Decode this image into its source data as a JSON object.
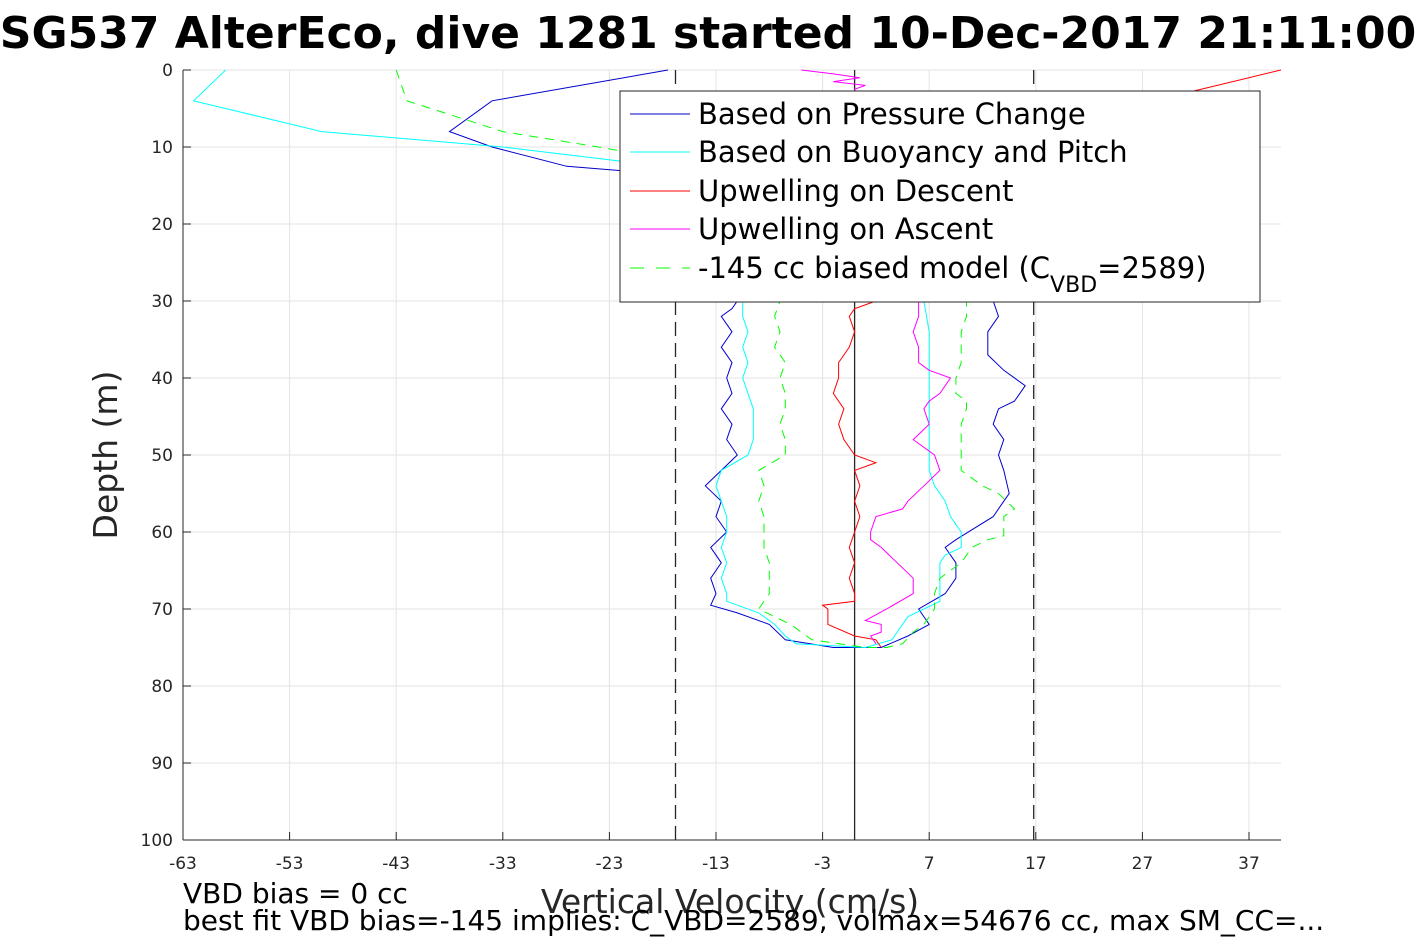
{
  "title": "SG537 AlterEco, dive 1281 started 10-Dec-2017 21:11:00",
  "notes": {
    "bias": "VBD bias = 0 cc",
    "fit": "best fit VBD bias=-145 implies: C_VBD=2589, volmax=54676 cc, max SM_CC=..."
  },
  "chart_data": {
    "type": "line",
    "xlabel": "Vertical Velocity (cm/s)",
    "ylabel": "Depth (m)",
    "xlim": [
      -63,
      40
    ],
    "ylim": [
      0,
      100
    ],
    "y_reversed": true,
    "grid": true,
    "xticks": [
      -63,
      -53,
      -43,
      -33,
      -23,
      -13,
      -3,
      7,
      17,
      27,
      37
    ],
    "yticks": [
      0,
      10,
      20,
      30,
      40,
      50,
      60,
      70,
      80,
      90,
      100
    ],
    "legend_position": "top-right",
    "reference_lines": [
      {
        "x": -16.8,
        "style": "dashed",
        "color": "#000000"
      },
      {
        "x": 0.0,
        "style": "solid",
        "color": "#000000"
      },
      {
        "x": 16.8,
        "style": "dashed",
        "color": "#000000"
      }
    ],
    "series": [
      {
        "name": "Based on Pressure Change",
        "color": "#0000cc",
        "dash": "",
        "points": [
          [
            -17.5,
            0
          ],
          [
            -34,
            4
          ],
          [
            -38,
            8
          ],
          [
            -34,
            10
          ],
          [
            -27,
            12.5
          ],
          [
            -18,
            13.5
          ],
          [
            -11,
            30
          ],
          [
            -11.5,
            31
          ],
          [
            -12.5,
            32
          ],
          [
            -11.5,
            34
          ],
          [
            -12.5,
            36
          ],
          [
            -11.5,
            38
          ],
          [
            -12,
            40
          ],
          [
            -11.5,
            42
          ],
          [
            -12.5,
            44
          ],
          [
            -11.5,
            46
          ],
          [
            -12,
            48
          ],
          [
            -11,
            50
          ],
          [
            -12.5,
            52
          ],
          [
            -14,
            54
          ],
          [
            -12.5,
            56
          ],
          [
            -13,
            58
          ],
          [
            -12,
            60
          ],
          [
            -13.5,
            62
          ],
          [
            -12.5,
            64
          ],
          [
            -13.5,
            66
          ],
          [
            -13,
            68
          ],
          [
            -13.5,
            69.5
          ],
          [
            -11,
            70.5
          ],
          [
            -8,
            72
          ],
          [
            -6.5,
            74
          ],
          [
            -2,
            75
          ],
          [
            2.5,
            75
          ],
          [
            5,
            73.5
          ],
          [
            7,
            72
          ],
          [
            6,
            70
          ],
          [
            8.5,
            68
          ],
          [
            9.5,
            66
          ],
          [
            9.5,
            64
          ],
          [
            8.5,
            62
          ],
          [
            9.5,
            61
          ],
          [
            13,
            58
          ],
          [
            14,
            56
          ],
          [
            14.5,
            55
          ],
          [
            14,
            52
          ],
          [
            13.5,
            50
          ],
          [
            14,
            48
          ],
          [
            13,
            46
          ],
          [
            13.5,
            44
          ],
          [
            15,
            43
          ],
          [
            16,
            41
          ],
          [
            14,
            39
          ],
          [
            12.5,
            37
          ],
          [
            12.5,
            34
          ],
          [
            13.5,
            32
          ],
          [
            13,
            30
          ]
        ]
      },
      {
        "name": "Based on Buoyancy and Pitch",
        "color": "#00ffff",
        "dash": "",
        "points": [
          [
            -59,
            0
          ],
          [
            -62,
            4
          ],
          [
            -50,
            8
          ],
          [
            -33,
            10
          ],
          [
            -21,
            12
          ],
          [
            -10.5,
            30
          ],
          [
            -10.5,
            32
          ],
          [
            -10,
            34
          ],
          [
            -10.5,
            36
          ],
          [
            -10,
            38
          ],
          [
            -10.5,
            40
          ],
          [
            -10,
            42
          ],
          [
            -9.5,
            44
          ],
          [
            -9.5,
            46
          ],
          [
            -9.5,
            48
          ],
          [
            -10,
            50
          ],
          [
            -12.5,
            52
          ],
          [
            -13,
            54
          ],
          [
            -12.5,
            56
          ],
          [
            -12,
            58
          ],
          [
            -12,
            60
          ],
          [
            -12.5,
            62
          ],
          [
            -12,
            64
          ],
          [
            -12.5,
            66
          ],
          [
            -12,
            68
          ],
          [
            -12,
            69
          ],
          [
            -9,
            70.5
          ],
          [
            -7.5,
            72
          ],
          [
            -6.5,
            73.5
          ],
          [
            -5.5,
            74.5
          ],
          [
            1,
            75
          ],
          [
            3.5,
            74
          ],
          [
            4,
            73
          ],
          [
            5,
            71
          ],
          [
            8,
            69
          ],
          [
            8,
            66
          ],
          [
            8,
            64
          ],
          [
            8.5,
            63
          ],
          [
            10,
            62
          ],
          [
            10,
            60
          ],
          [
            9,
            58
          ],
          [
            8.5,
            56
          ],
          [
            7.5,
            54
          ],
          [
            7,
            52
          ],
          [
            7,
            50
          ],
          [
            7,
            46
          ],
          [
            7,
            42
          ],
          [
            7,
            38
          ],
          [
            7,
            34
          ],
          [
            6.5,
            30
          ]
        ]
      },
      {
        "name": "Upwelling on Descent",
        "color": "#ff0000",
        "dash": "",
        "points": [
          [
            40,
            0
          ],
          [
            31,
            3
          ],
          [
            26,
            5
          ],
          [
            2,
            30
          ],
          [
            0,
            31
          ],
          [
            -0.5,
            32
          ],
          [
            0,
            34
          ],
          [
            -0.5,
            36
          ],
          [
            -1.5,
            38
          ],
          [
            -1.5,
            40
          ],
          [
            -2,
            42
          ],
          [
            -1,
            44
          ],
          [
            -1.5,
            46
          ],
          [
            -1,
            48
          ],
          [
            0,
            50
          ],
          [
            2,
            51
          ],
          [
            0,
            52
          ],
          [
            0.5,
            54
          ],
          [
            0,
            56
          ],
          [
            0.5,
            58
          ],
          [
            0,
            60
          ],
          [
            -0.5,
            62
          ],
          [
            0,
            64
          ],
          [
            -0.5,
            66
          ],
          [
            0,
            68
          ],
          [
            0,
            69
          ],
          [
            -3,
            69.5
          ],
          [
            -2.5,
            70
          ],
          [
            -2.5,
            72
          ],
          [
            0,
            73.5
          ],
          [
            2,
            74
          ],
          [
            2.5,
            75
          ]
        ]
      },
      {
        "name": "Upwelling on Ascent",
        "color": "#ff00ff",
        "dash": "",
        "points": [
          [
            -5,
            0
          ],
          [
            -2,
            0.5
          ],
          [
            0.5,
            1
          ],
          [
            -2,
            1.5
          ],
          [
            1,
            2
          ],
          [
            0,
            2.5
          ],
          [
            6,
            30
          ],
          [
            6,
            32
          ],
          [
            5.5,
            34
          ],
          [
            6,
            36
          ],
          [
            6,
            38
          ],
          [
            7,
            39
          ],
          [
            9,
            40
          ],
          [
            8,
            42
          ],
          [
            7,
            43
          ],
          [
            6.5,
            44
          ],
          [
            7,
            46
          ],
          [
            5.5,
            48
          ],
          [
            7.5,
            50
          ],
          [
            8,
            52
          ],
          [
            6.5,
            54
          ],
          [
            5,
            56
          ],
          [
            4.5,
            57
          ],
          [
            2,
            58
          ],
          [
            1.5,
            60
          ],
          [
            1.5,
            61
          ],
          [
            2.5,
            62
          ],
          [
            4,
            64
          ],
          [
            5.5,
            66
          ],
          [
            5.5,
            68
          ],
          [
            3,
            70
          ],
          [
            1,
            71.5
          ],
          [
            2.5,
            72
          ],
          [
            2.5,
            73
          ],
          [
            1.5,
            73.5
          ],
          [
            2,
            74.5
          ]
        ]
      },
      {
        "name": "-145 cc biased model (C_VBD=2589)",
        "label_parts": {
          "pre": "-145 cc biased model (C",
          "sub": "VBD",
          "post": "=2589)"
        },
        "color": "#00ff00",
        "dash": "9,7",
        "points": [
          [
            -43,
            0
          ],
          [
            -42,
            4
          ],
          [
            -33,
            8
          ],
          [
            -24,
            10
          ],
          [
            -16,
            12
          ],
          [
            -7,
            30
          ],
          [
            -7.5,
            32
          ],
          [
            -7,
            34
          ],
          [
            -7.5,
            36
          ],
          [
            -6.5,
            38
          ],
          [
            -7,
            40
          ],
          [
            -6.5,
            42
          ],
          [
            -6.5,
            44
          ],
          [
            -7,
            46
          ],
          [
            -6.5,
            48
          ],
          [
            -6.5,
            50
          ],
          [
            -9,
            52
          ],
          [
            -8.5,
            54
          ],
          [
            -9,
            56
          ],
          [
            -8.5,
            58
          ],
          [
            -8.5,
            60
          ],
          [
            -8.5,
            62
          ],
          [
            -8,
            64
          ],
          [
            -8,
            66
          ],
          [
            -8,
            68
          ],
          [
            -9,
            70
          ],
          [
            -6,
            72
          ],
          [
            -4,
            74
          ],
          [
            1,
            75
          ],
          [
            3,
            75
          ],
          [
            4.5,
            74.5
          ],
          [
            5.5,
            73
          ],
          [
            6.5,
            72
          ],
          [
            7,
            71
          ],
          [
            7.5,
            70
          ],
          [
            7.5,
            68
          ],
          [
            8,
            66
          ],
          [
            10,
            64
          ],
          [
            11,
            62
          ],
          [
            12.5,
            61
          ],
          [
            14,
            60.5
          ],
          [
            14,
            58
          ],
          [
            15,
            57
          ],
          [
            13.5,
            55
          ],
          [
            12,
            54
          ],
          [
            10,
            52
          ],
          [
            10,
            50
          ],
          [
            10,
            48
          ],
          [
            10,
            46
          ],
          [
            10.5,
            44
          ],
          [
            10.5,
            43
          ],
          [
            9.5,
            42
          ],
          [
            9.5,
            40
          ],
          [
            10,
            38
          ],
          [
            10,
            36
          ],
          [
            10,
            34
          ],
          [
            10.5,
            32
          ],
          [
            10.5,
            30
          ]
        ]
      }
    ]
  }
}
